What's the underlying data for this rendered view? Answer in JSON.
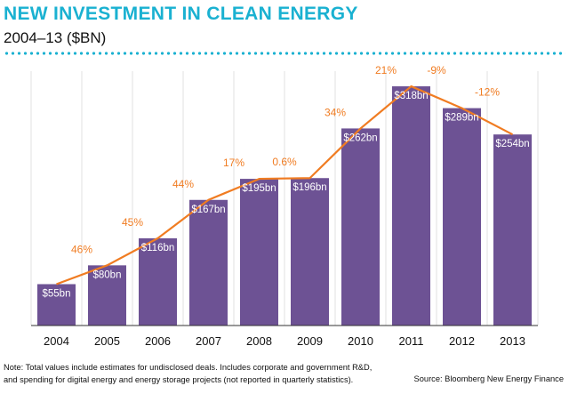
{
  "header": {
    "title": "NEW INVESTMENT IN CLEAN ENERGY",
    "subtitle": "2004–13 ($BN)"
  },
  "footer": {
    "note_line1": "Note: Total values include estimates for undisclosed deals. Includes corporate and government R&D,",
    "note_line2": "and spending for digital energy and energy storage projects (not reported in quarterly statistics).",
    "source": "Source: Bloomberg New Energy Finance"
  },
  "colors": {
    "title": "#1ab1d1",
    "bar": "#6d5294",
    "line": "#f07c22",
    "growth_label": "#f07c22",
    "bar_label": "#ffffff",
    "grid": "#d9d9d9"
  },
  "chart_data": {
    "type": "bar",
    "categories": [
      "2004",
      "2005",
      "2006",
      "2007",
      "2008",
      "2009",
      "2010",
      "2011",
      "2012",
      "2013"
    ],
    "values": [
      55,
      80,
      116,
      167,
      195,
      196,
      262,
      318,
      289,
      254
    ],
    "value_labels": [
      "$55bn",
      "$80bn",
      "$116bn",
      "$167bn",
      "$195bn",
      "$196bn",
      "$262bn",
      "$318bn",
      "$289bn",
      "$254bn"
    ],
    "growth_labels": [
      "46%",
      "45%",
      "44%",
      "17%",
      "0.6%",
      "34%",
      "21%",
      "-9%",
      "-12%"
    ],
    "overlay": "line connecting bar tops",
    "ylim": [
      0,
      350
    ],
    "grid": true
  }
}
